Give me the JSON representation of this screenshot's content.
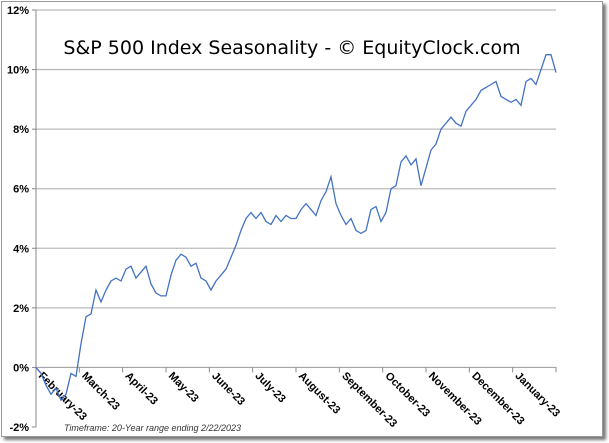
{
  "chart_data": {
    "type": "line",
    "title": "S&P 500 Index Seasonality - © EquityClock.com",
    "footnote": "Timeframe: 20-Year range ending 2/22/2023",
    "xlabel": "",
    "ylabel": "",
    "ylim": [
      -2,
      12
    ],
    "xlim": [
      0,
      104
    ],
    "grid": true,
    "yticks": [
      -2,
      0,
      2,
      4,
      6,
      8,
      10,
      12
    ],
    "ytick_labels": [
      "-2%",
      "0%",
      "2%",
      "4%",
      "6%",
      "8%",
      "10%",
      "12%"
    ],
    "xtick_labels": [
      "February-23",
      "March-23",
      "April-23",
      "May-23",
      "June-23",
      "July-23",
      "August-23",
      "September-23",
      "October-23",
      "November-23",
      "December-23",
      "January-23"
    ],
    "line_color": "#4472c4",
    "series": [
      {
        "name": "S&P 500 Seasonality",
        "values": [
          0,
          -0.2,
          -0.6,
          -0.9,
          -0.7,
          -1.1,
          -0.9,
          -0.2,
          -0.3,
          0.8,
          1.7,
          1.8,
          2.6,
          2.2,
          2.6,
          2.9,
          3.0,
          2.9,
          3.3,
          3.4,
          3.0,
          3.2,
          3.4,
          2.8,
          2.5,
          2.4,
          2.4,
          3.1,
          3.6,
          3.8,
          3.7,
          3.4,
          3.5,
          3.0,
          2.9,
          2.6,
          2.9,
          3.1,
          3.3,
          3.7,
          4.1,
          4.6,
          5.0,
          5.2,
          5.0,
          5.2,
          4.9,
          4.8,
          5.1,
          4.9,
          5.1,
          5.0,
          5.0,
          5.3,
          5.5,
          5.3,
          5.1,
          5.6,
          5.9,
          6.4,
          5.5,
          5.1,
          4.8,
          5.0,
          4.6,
          4.5,
          4.6,
          5.3,
          5.4,
          4.9,
          5.2,
          6.0,
          6.1,
          6.9,
          7.1,
          6.8,
          7.0,
          6.1,
          6.7,
          7.3,
          7.5,
          8.0,
          8.2,
          8.4,
          8.2,
          8.1,
          8.6,
          8.8,
          9.0,
          9.3,
          9.4,
          9.5,
          9.6,
          9.1,
          9.0,
          8.9,
          9.0,
          8.8,
          9.6,
          9.7,
          9.5,
          10.0,
          10.5,
          10.5,
          9.9
        ]
      }
    ]
  }
}
